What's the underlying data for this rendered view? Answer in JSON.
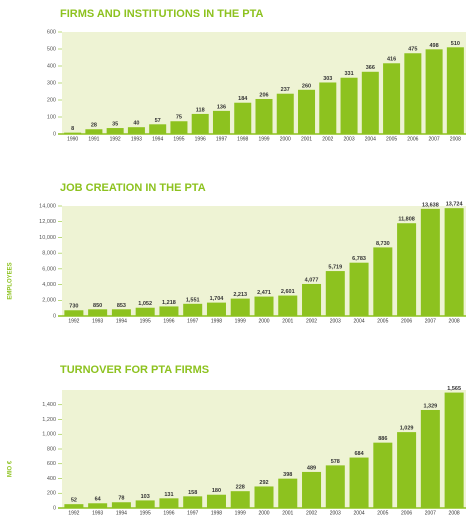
{
  "chart_data": [
    {
      "type": "bar",
      "title": "FIRMS AND INSTITUTIONS IN THE PTA",
      "color": "#8dc21f",
      "categories": [
        "1990",
        "1991",
        "1992",
        "1993",
        "1994",
        "1995",
        "1996",
        "1997",
        "1998",
        "1999",
        "2000",
        "2001",
        "2002",
        "2003",
        "2004",
        "2005",
        "2006",
        "2007",
        "2008"
      ],
      "values": [
        8,
        28,
        35,
        40,
        57,
        75,
        118,
        136,
        184,
        206,
        237,
        260,
        303,
        331,
        366,
        416,
        475,
        498,
        510
      ],
      "ylim": [
        0,
        600
      ],
      "yticks": [
        0,
        100,
        200,
        300,
        400,
        500,
        600
      ],
      "grid": false
    },
    {
      "type": "bar",
      "title": "JOB CREATION IN THE PTA",
      "y_label": "EMPLOYEES",
      "color": "#8dc21f",
      "categories": [
        "1992",
        "1993",
        "1994",
        "1995",
        "1996",
        "1997",
        "1998",
        "1999",
        "2000",
        "2001",
        "2002",
        "2003",
        "2004",
        "2005",
        "2006",
        "2007",
        "2008"
      ],
      "values": [
        730,
        850,
        853,
        1052,
        1218,
        1551,
        1704,
        2213,
        2471,
        2601,
        4077,
        5719,
        6783,
        8730,
        11808,
        13638,
        13724
      ],
      "value_labels": [
        "730",
        "850",
        "853",
        "1,052",
        "1,218",
        "1,551",
        "1,704",
        "2,213",
        "2,471",
        "2,601",
        "4,077",
        "5,719",
        "6,783",
        "8,730",
        "11,808",
        "13,638",
        "13,724"
      ],
      "ylim": [
        0,
        14000
      ],
      "yticks": [
        0,
        {
          "value": 2000,
          "label": "2,000"
        },
        {
          "value": 4000,
          "label": "4,000"
        },
        {
          "value": 6000,
          "label": "6,000"
        },
        {
          "value": 8000,
          "label": "8,000"
        },
        {
          "value": 10000,
          "label": "10,000"
        },
        {
          "value": 12000,
          "label": "12,000"
        },
        {
          "value": 14000,
          "label": "14,000"
        }
      ],
      "grid": false
    },
    {
      "type": "bar",
      "title": "TURNOVER FOR PTA FIRMS",
      "y_label": "MIO €",
      "color": "#8dc21f",
      "categories": [
        "1992",
        "1993",
        "1994",
        "1995",
        "1996",
        "1997",
        "1998",
        "1999",
        "2000",
        "2001",
        "2002",
        "2003",
        "2004",
        "2005",
        "2006",
        "2007",
        "2008"
      ],
      "values": [
        52,
        64,
        78,
        103,
        131,
        158,
        180,
        228,
        292,
        398,
        489,
        578,
        684,
        886,
        1029,
        1329,
        1565
      ],
      "value_labels": [
        "52",
        "64",
        "78",
        "103",
        "131",
        "158",
        "180",
        "228",
        "292",
        "398",
        "489",
        "578",
        "684",
        "886",
        "1,029",
        "1,329",
        "1,565"
      ],
      "ylim": [
        0,
        1600
      ],
      "yticks": [
        0,
        200,
        400,
        600,
        800,
        {
          "value": 1000,
          "label": "1,000"
        },
        {
          "value": 1200,
          "label": "1,200"
        },
        {
          "value": 1400,
          "label": "1,400"
        }
      ],
      "grid": false
    }
  ]
}
